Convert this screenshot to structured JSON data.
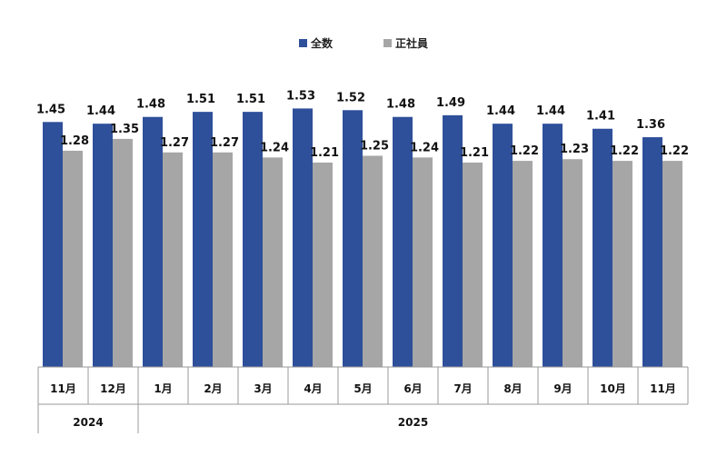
{
  "chart_data": {
    "type": "bar",
    "categories": [
      "11月",
      "12月",
      "1月",
      "2月",
      "3月",
      "4月",
      "5月",
      "6月",
      "7月",
      "8月",
      "9月",
      "10月",
      "11月"
    ],
    "year_groups": [
      {
        "label": "2024",
        "span": 2
      },
      {
        "label": "2025",
        "span": 11
      }
    ],
    "series": [
      {
        "name": "全数",
        "color": "#2e4f9a",
        "values": [
          1.45,
          1.44,
          1.48,
          1.51,
          1.51,
          1.53,
          1.52,
          1.48,
          1.49,
          1.44,
          1.44,
          1.41,
          1.36
        ]
      },
      {
        "name": "正社員",
        "color": "#a6a6a6",
        "values": [
          1.28,
          1.35,
          1.27,
          1.27,
          1.24,
          1.21,
          1.25,
          1.24,
          1.21,
          1.22,
          1.23,
          1.22,
          1.22
        ]
      }
    ],
    "legend_position": "top-center",
    "ylim": [
      0,
      1.6
    ],
    "grid": false
  }
}
